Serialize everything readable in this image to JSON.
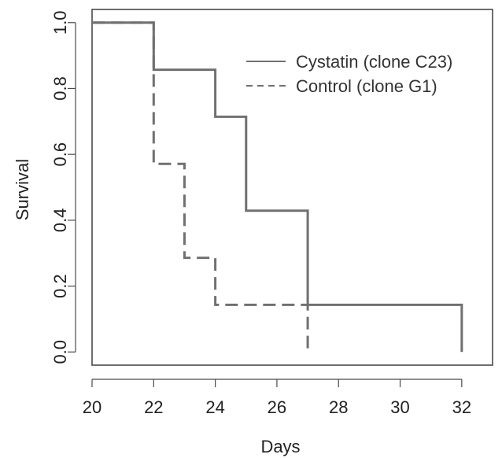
{
  "chart_data": {
    "type": "line",
    "title": "",
    "xlabel": "Days",
    "ylabel": "Survival",
    "xlim": [
      20,
      33
    ],
    "ylim": [
      -0.04,
      1.04
    ],
    "x_ticks": [
      20,
      22,
      24,
      26,
      28,
      30,
      32
    ],
    "y_ticks": [
      0.0,
      0.2,
      0.4,
      0.6,
      0.8,
      1.0
    ],
    "x_tick_labels": [
      "20",
      "22",
      "24",
      "26",
      "28",
      "30",
      "32"
    ],
    "y_tick_labels": [
      "0.0",
      "0.2",
      "0.4",
      "0.6",
      "0.8",
      "1.0"
    ],
    "grid": false,
    "legend_position": "top-right",
    "series": [
      {
        "name": "Cystatin (clone C23)",
        "style": "solid",
        "color": "#707070",
        "points": [
          {
            "x": 20,
            "y": 1.0
          },
          {
            "x": 22,
            "y": 0.857
          },
          {
            "x": 24,
            "y": 0.714
          },
          {
            "x": 25,
            "y": 0.429
          },
          {
            "x": 27,
            "y": 0.143
          },
          {
            "x": 32,
            "y": 0.0
          }
        ]
      },
      {
        "name": "Control (clone G1)",
        "style": "dashed",
        "color": "#707070",
        "points": [
          {
            "x": 20,
            "y": 1.0
          },
          {
            "x": 22,
            "y": 0.571
          },
          {
            "x": 23,
            "y": 0.286
          },
          {
            "x": 24,
            "y": 0.143
          },
          {
            "x": 27,
            "y": 0.0
          }
        ]
      }
    ]
  }
}
